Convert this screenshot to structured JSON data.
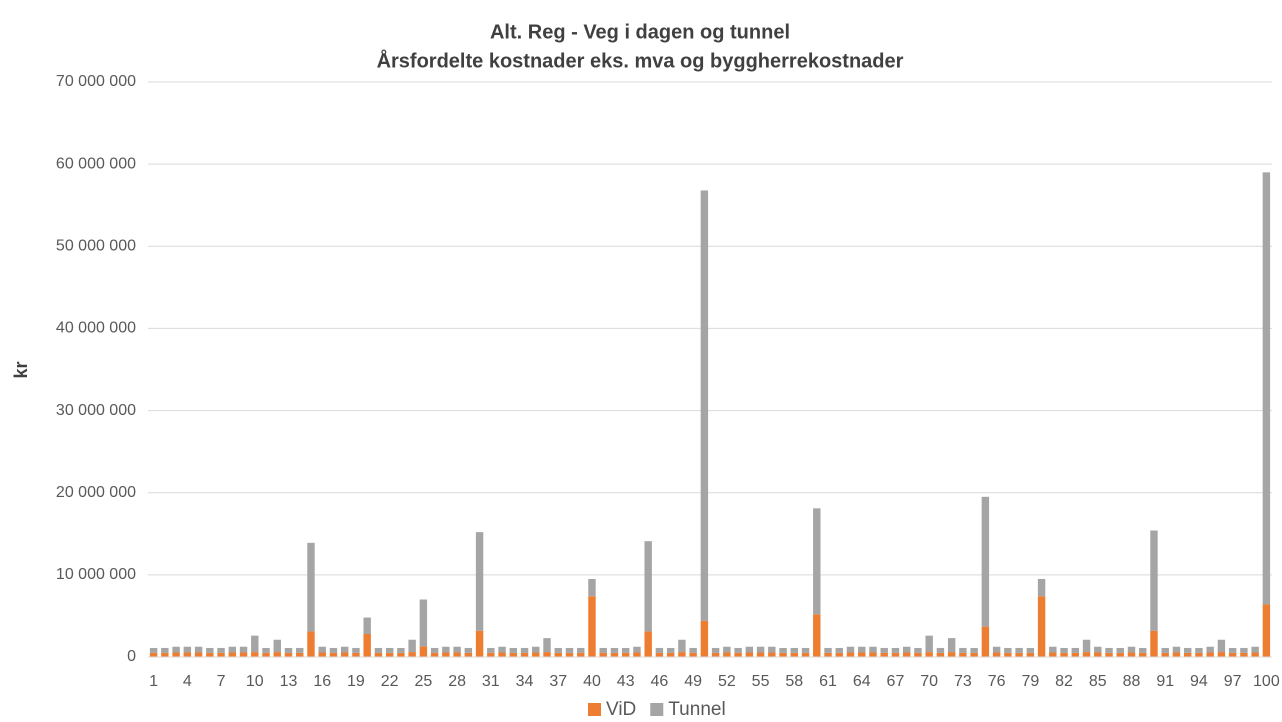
{
  "chart_data": {
    "type": "stacked_bar",
    "title": "Alt. Reg - Veg i dagen og tunnel",
    "subtitle": "Årsfordelte kostnader eks. mva og byggherrekostnader",
    "y_label": "kr",
    "categories": [
      "1",
      null,
      null,
      "4",
      null,
      null,
      "7",
      null,
      null,
      "10",
      null,
      null,
      "13",
      null,
      null,
      "16",
      null,
      null,
      "19",
      null,
      null,
      "22",
      null,
      null,
      "25",
      null,
      null,
      "28",
      null,
      null,
      "31",
      null,
      null,
      "34",
      null,
      null,
      "37",
      null,
      null,
      "40",
      null,
      null,
      "43",
      null,
      null,
      "46",
      null,
      null,
      "49",
      null,
      null,
      "52",
      null,
      null,
      "55",
      null,
      null,
      "58",
      null,
      null,
      "61",
      null,
      null,
      "64",
      null,
      null,
      "67",
      null,
      null,
      "70",
      null,
      null,
      "73",
      null,
      null,
      "76",
      null,
      null,
      "79",
      null,
      null,
      "82",
      null,
      null,
      "85",
      null,
      null,
      "88",
      null,
      null,
      "91",
      null,
      null,
      "94",
      null,
      null,
      "97",
      null,
      null,
      "100"
    ],
    "series": [
      {
        "name": "ViD",
        "color": "#ed7d31",
        "values": [
          500000,
          500000,
          550000,
          550000,
          550000,
          500000,
          500000,
          550000,
          550000,
          600000,
          500000,
          600000,
          500000,
          500000,
          3100000,
          550000,
          500000,
          550000,
          500000,
          2800000,
          500000,
          500000,
          500000,
          600000,
          1300000,
          500000,
          550000,
          550000,
          500000,
          3200000,
          500000,
          550000,
          500000,
          500000,
          550000,
          600000,
          500000,
          500000,
          500000,
          7400000,
          500000,
          500000,
          500000,
          550000,
          3100000,
          500000,
          500000,
          600000,
          500000,
          4400000,
          500000,
          550000,
          500000,
          550000,
          550000,
          550000,
          500000,
          500000,
          500000,
          5200000,
          500000,
          500000,
          550000,
          550000,
          550000,
          500000,
          500000,
          550000,
          500000,
          600000,
          500000,
          600000,
          500000,
          500000,
          3700000,
          550000,
          500000,
          500000,
          500000,
          7400000,
          550000,
          500000,
          500000,
          600000,
          550000,
          500000,
          500000,
          550000,
          500000,
          3200000,
          500000,
          550000,
          500000,
          500000,
          550000,
          600000,
          500000,
          500000,
          550000,
          6400000
        ]
      },
      {
        "name": "Tunnel",
        "color": "#a5a5a5",
        "values": [
          600000,
          600000,
          700000,
          700000,
          700000,
          600000,
          600000,
          700000,
          700000,
          2000000,
          600000,
          1500000,
          600000,
          600000,
          10800000,
          700000,
          600000,
          700000,
          600000,
          2000000,
          600000,
          600000,
          600000,
          1500000,
          5700000,
          600000,
          700000,
          700000,
          600000,
          12000000,
          600000,
          700000,
          600000,
          600000,
          700000,
          1700000,
          600000,
          600000,
          600000,
          2100000,
          600000,
          600000,
          600000,
          700000,
          11000000,
          600000,
          600000,
          1500000,
          600000,
          52400000,
          600000,
          700000,
          600000,
          700000,
          700000,
          700000,
          600000,
          600000,
          600000,
          12900000,
          600000,
          600000,
          700000,
          700000,
          700000,
          600000,
          600000,
          700000,
          600000,
          2000000,
          600000,
          1700000,
          600000,
          600000,
          15800000,
          700000,
          600000,
          600000,
          600000,
          2100000,
          700000,
          600000,
          600000,
          1500000,
          700000,
          600000,
          600000,
          700000,
          600000,
          12200000,
          600000,
          700000,
          600000,
          600000,
          700000,
          1500000,
          600000,
          600000,
          700000,
          52600000
        ]
      }
    ],
    "ylim": [
      0,
      70000000
    ],
    "yticks": [
      0,
      {
        "value": 10000000,
        "label": "10 000 000"
      },
      {
        "value": 20000000,
        "label": "20 000 000"
      },
      {
        "value": 30000000,
        "label": "30 000 000"
      },
      {
        "value": 40000000,
        "label": "40 000 000"
      },
      {
        "value": 50000000,
        "label": "50 000 000"
      },
      {
        "value": 60000000,
        "label": "60 000 000"
      },
      {
        "value": 70000000,
        "label": "70 000 000"
      }
    ],
    "grid": true,
    "legend": "bottom"
  }
}
